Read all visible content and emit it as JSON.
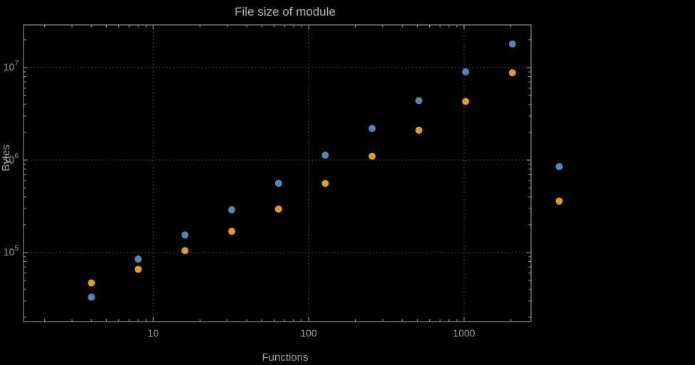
{
  "chart_data": {
    "type": "scatter",
    "title": "File size of module",
    "xlabel": "Functions",
    "ylabel": "Bytes",
    "x_scale": "log",
    "y_scale": "log",
    "x": [
      4,
      8,
      16,
      32,
      64,
      128,
      256,
      512,
      1024,
      2048,
      4096
    ],
    "series": [
      {
        "name": "series-1-blue",
        "color": "#5e81b5",
        "values": [
          33000,
          85000,
          155000,
          290000,
          560000,
          1130000,
          2200000,
          4400000,
          9000000,
          18000000,
          850000
        ]
      },
      {
        "name": "series-2-orange",
        "color": "#e19c24",
        "values": [
          47000,
          66000,
          105000,
          170000,
          295000,
          560000,
          1100000,
          2100000,
          4300000,
          8800000,
          360000
        ]
      }
    ],
    "x_ticks": {
      "major": [
        10,
        100,
        1000
      ],
      "labels": [
        "10",
        "100",
        "1000"
      ]
    },
    "y_ticks": {
      "major_base": 10,
      "major_exponents": [
        5,
        6,
        7
      ]
    },
    "grid": {
      "x": [
        10,
        100,
        1000
      ],
      "y_exponents": [
        5,
        6,
        7
      ],
      "style": "dotted"
    },
    "xlim": [
      1.46,
      2700
    ],
    "ylim_exponents": [
      4.25,
      7.46
    ],
    "legend": "none"
  },
  "colors": {
    "background": "#000000",
    "frame": "#a7a7a7",
    "grid": "#5f5f5f",
    "text": "#9f9f9f",
    "title": "#b4b4b4",
    "series1": "#5e81b5",
    "series2": "#e19c24"
  }
}
